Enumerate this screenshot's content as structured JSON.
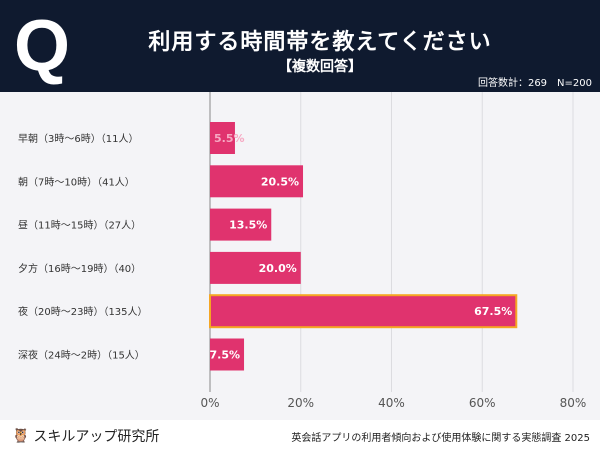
{
  "header": {
    "q_mark": "Q",
    "title": "利用する時間帯を教えてください",
    "subtitle": "【複数回答】",
    "count": "回答数計：269　N=200"
  },
  "footer": {
    "logo": "スキルアップ研究所",
    "source": "英会話アプリの利用者傾向および使用体験に関する実態調査 2025"
  },
  "colors": {
    "bar": "#e0336e",
    "highlight_border": "#f5a623",
    "header_bg": "#0f1a2f"
  },
  "chart_data": {
    "type": "bar",
    "orientation": "horizontal",
    "categories": [
      "早朝（3時〜6時）（11人）",
      "朝（7時〜10時）（41人）",
      "昼（11時〜15時）（27人）",
      "夕方（16時〜19時）（40）",
      "夜（20時〜23時）（135人）",
      "深夜（24時〜2時）（15人）"
    ],
    "values": [
      5.5,
      20.5,
      13.5,
      20.0,
      67.5,
      7.5
    ],
    "data_labels": [
      "5.5%",
      "20.5%",
      "13.5%",
      "20.0%",
      "67.5%",
      "7.5%"
    ],
    "xlim": [
      0,
      80
    ],
    "xticks": [
      "0%",
      "20%",
      "40%",
      "60%",
      "80%"
    ],
    "grid": true,
    "highlighted_category": "夜（20時〜23時）（135人）"
  }
}
